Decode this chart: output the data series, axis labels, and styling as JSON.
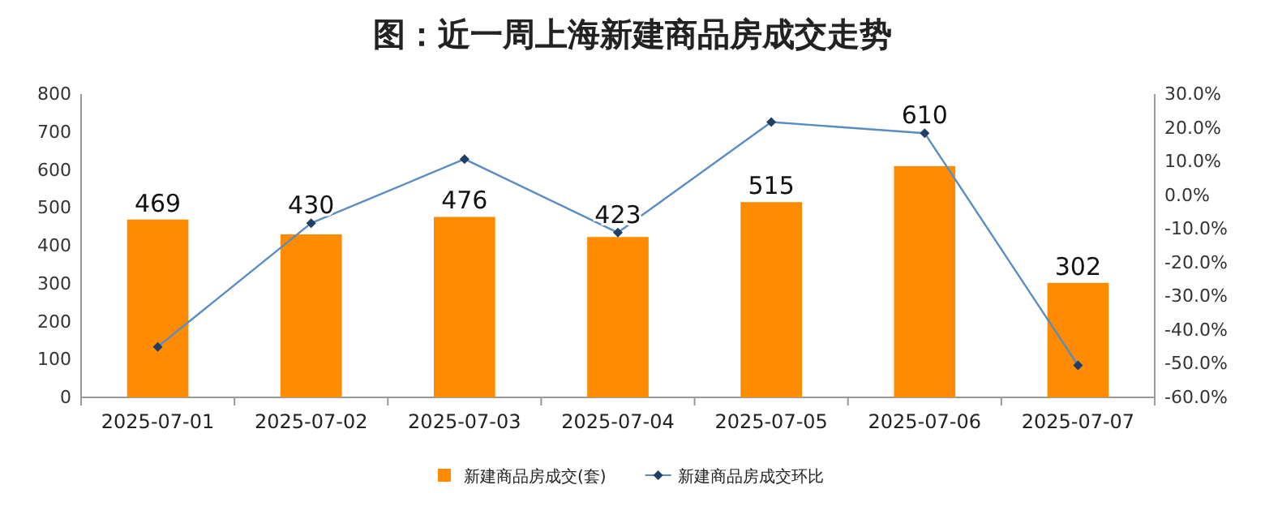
{
  "chart_data": {
    "type": "bar",
    "title": "图：近一周上海新建商品房成交走势",
    "categories": [
      "2025-07-01",
      "2025-07-02",
      "2025-07-03",
      "2025-07-04",
      "2025-07-05",
      "2025-07-06",
      "2025-07-07"
    ],
    "series": [
      {
        "name": "新建商品房成交(套)",
        "color": "#ff8c00",
        "values": [
          469,
          430,
          476,
          423,
          515,
          610,
          302
        ],
        "value_labels": [
          "469",
          "430",
          "476",
          "423",
          "515",
          "610",
          "302"
        ]
      },
      {
        "name": "新建商品房成交环比",
        "type": "line",
        "axis": "y2",
        "color": "#5b8cc0",
        "marker": "diamond",
        "values": [
          -45,
          -8.3,
          10.7,
          -11.1,
          21.7,
          18.4,
          -50.5
        ]
      }
    ],
    "ylim": [
      0,
      800
    ],
    "yticks": [
      0,
      100,
      200,
      300,
      400,
      500,
      600,
      700,
      800
    ],
    "y2lim": [
      -60,
      30
    ],
    "y2ticks": [
      {
        "value": -60,
        "label": "-60.0%"
      },
      {
        "value": -50,
        "label": "-50.0%"
      },
      {
        "value": -40,
        "label": "-40.0%"
      },
      {
        "value": -30,
        "label": "-30.0%"
      },
      {
        "value": -20,
        "label": "-20.0%"
      },
      {
        "value": -10,
        "label": "-10.0%"
      },
      {
        "value": 0,
        "label": "0.0%"
      },
      {
        "value": 10,
        "label": "10.0%"
      },
      {
        "value": 20,
        "label": "20.0%"
      },
      {
        "value": 30,
        "label": "30.0%"
      }
    ],
    "legend": "bottom",
    "grid": false
  }
}
